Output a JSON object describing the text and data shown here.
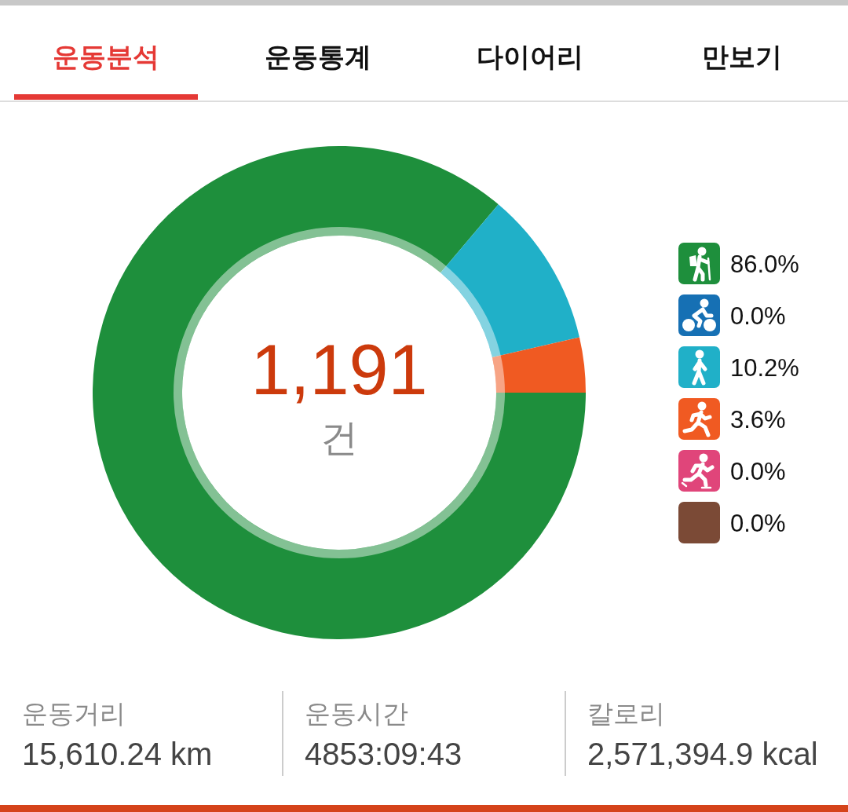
{
  "chart_data": [
    {
      "type": "other",
      "annotations": [
        "운동분석",
        "운동통계",
        "다이어리",
        "만보기"
      ]
    },
    {
      "type": "donut",
      "categories": [
        null,
        null,
        null,
        null,
        null,
        null
      ],
      "values": [
        86.0,
        0.0,
        10.2,
        3.6,
        0.0,
        0.0
      ],
      "colors": [
        "#1e8f3c",
        "#1670b4",
        "#20b0c8",
        "#f05a22",
        "#e0457a",
        "#7b4a36"
      ],
      "annotations": [
        "1,191",
        "건",
        "86.0%",
        "0.0%",
        "10.2%",
        "3.6%",
        "0.0%",
        "0.0%"
      ]
    },
    {
      "type": "other",
      "annotations": [
        "운동거리",
        "15,610.24 km",
        "운동시간",
        "4853:09:43",
        "칼로리",
        "2,571,394.9 kcal"
      ]
    }
  ]
}
